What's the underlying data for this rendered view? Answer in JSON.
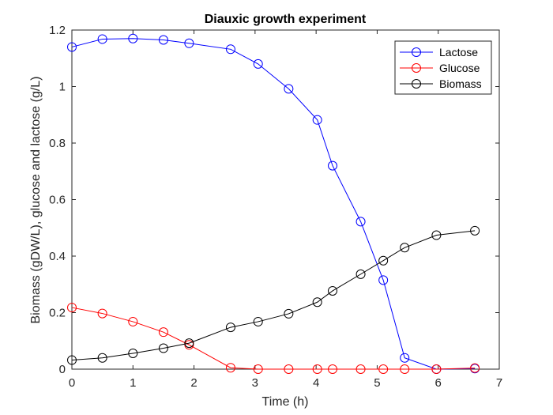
{
  "chart_data": {
    "type": "line",
    "title": "Diauxic growth experiment",
    "xlabel": "Time (h)",
    "ylabel": "Biomass (gDW/L), glucose and lactose (g/L)",
    "xlim": [
      0,
      7
    ],
    "ylim": [
      0,
      1.2
    ],
    "xticks": [
      0,
      1,
      2,
      3,
      4,
      5,
      6,
      7
    ],
    "xtick_labels": [
      "0",
      "1",
      "2",
      "3",
      "4",
      "5",
      "6",
      "7"
    ],
    "yticks": [
      0,
      0.2,
      0.4,
      0.6,
      0.8,
      1,
      1.2
    ],
    "ytick_labels": [
      "0",
      "0.2",
      "0.4",
      "0.6",
      "0.8",
      "1",
      "1.2"
    ],
    "grid": false,
    "legend_position": "top-right",
    "marker": "circle",
    "series": [
      {
        "name": "Lactose",
        "color": "#0000ff",
        "x": [
          0,
          0.5,
          1,
          1.5,
          1.92,
          2.6,
          3.05,
          3.55,
          4.02,
          4.27,
          4.73,
          5.1,
          5.45,
          5.97,
          6.6
        ],
        "y": [
          1.14,
          1.168,
          1.17,
          1.165,
          1.153,
          1.132,
          1.08,
          0.992,
          0.882,
          0.72,
          0.522,
          0.315,
          0.04,
          0.0,
          0.002
        ]
      },
      {
        "name": "Glucose",
        "color": "#ff0000",
        "x": [
          0,
          0.5,
          1,
          1.5,
          1.92,
          2.6,
          3.05,
          3.55,
          4.02,
          4.27,
          4.73,
          5.1,
          5.45,
          5.97,
          6.6
        ],
        "y": [
          0.218,
          0.197,
          0.168,
          0.131,
          0.086,
          0.005,
          0.0,
          0.0,
          0.0,
          0.0,
          0.0,
          0.0,
          0.0,
          0.0,
          0.004
        ]
      },
      {
        "name": "Biomass",
        "color": "#000000",
        "x": [
          0,
          0.5,
          1,
          1.5,
          1.92,
          2.6,
          3.05,
          3.55,
          4.02,
          4.27,
          4.73,
          5.1,
          5.45,
          5.97,
          6.6
        ],
        "y": [
          0.032,
          0.04,
          0.056,
          0.074,
          0.092,
          0.148,
          0.168,
          0.196,
          0.237,
          0.277,
          0.336,
          0.384,
          0.43,
          0.474,
          0.49
        ]
      }
    ]
  }
}
